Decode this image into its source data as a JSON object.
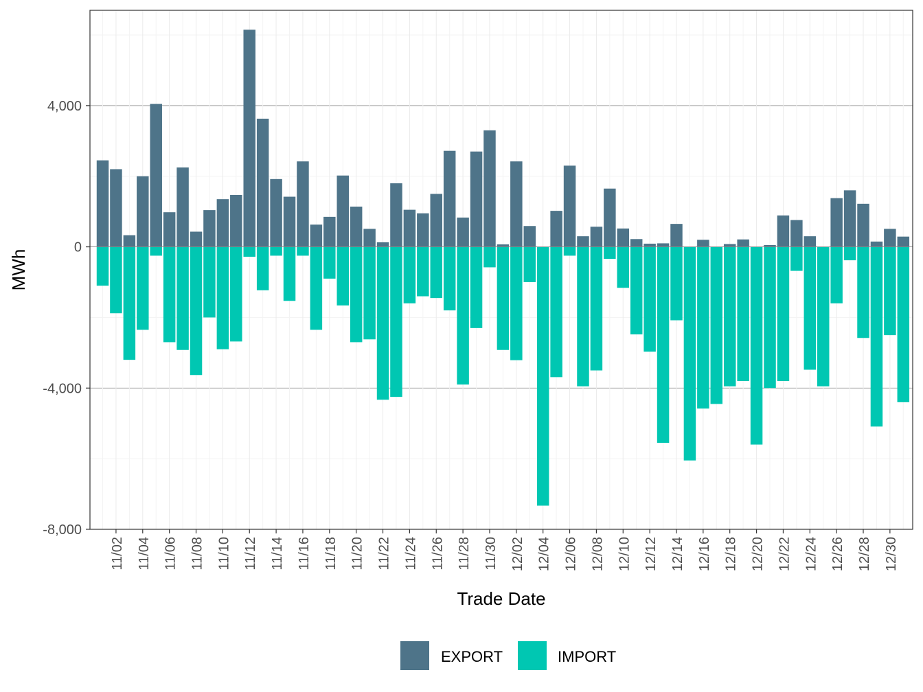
{
  "colors": {
    "export": "#4e7489",
    "import": "#00c7b2",
    "panel_border": "#333333",
    "grid_major": "#ebebeb",
    "grid_minor": "#f3f3f3",
    "zero_line": "#7a7a7a"
  },
  "chart_data": {
    "type": "bar",
    "stacked": true,
    "title": "",
    "xlabel": "Trade Date",
    "ylabel": "MWh",
    "ylim": [
      -8000,
      6700
    ],
    "yticks": [
      {
        "value": -8000,
        "label": "-8,000"
      },
      {
        "value": -4000,
        "label": "-4,000"
      },
      {
        "value": 0,
        "label": "0"
      },
      {
        "value": 4000,
        "label": "4,000"
      }
    ],
    "xticks": [
      "11/02",
      "11/04",
      "11/06",
      "11/08",
      "11/10",
      "11/12",
      "11/14",
      "11/16",
      "11/18",
      "11/20",
      "11/22",
      "11/24",
      "11/26",
      "11/28",
      "11/30",
      "12/02",
      "12/04",
      "12/06",
      "12/08",
      "12/10",
      "12/12",
      "12/14",
      "12/16",
      "12/18",
      "12/20",
      "12/22",
      "12/24",
      "12/26",
      "12/28",
      "12/30"
    ],
    "categories": [
      "11/01",
      "11/02",
      "11/03",
      "11/04",
      "11/05",
      "11/06",
      "11/07",
      "11/08",
      "11/09",
      "11/10",
      "11/11",
      "11/12",
      "11/13",
      "11/14",
      "11/15",
      "11/16",
      "11/17",
      "11/18",
      "11/19",
      "11/20",
      "11/21",
      "11/22",
      "11/23",
      "11/24",
      "11/25",
      "11/26",
      "11/27",
      "11/28",
      "11/29",
      "11/30",
      "12/01",
      "12/02",
      "12/03",
      "12/04",
      "12/05",
      "12/06",
      "12/07",
      "12/08",
      "12/09",
      "12/10",
      "12/11",
      "12/12",
      "12/13",
      "12/14",
      "12/15",
      "12/16",
      "12/17",
      "12/18",
      "12/19",
      "12/20",
      "12/21",
      "12/22",
      "12/23",
      "12/24",
      "12/25",
      "12/26",
      "12/27",
      "12/28",
      "12/29",
      "12/30",
      "12/31"
    ],
    "series": [
      {
        "name": "EXPORT",
        "values": [
          2450,
          2200,
          330,
          2000,
          4050,
          980,
          2250,
          430,
          1040,
          1350,
          1470,
          6150,
          3630,
          1920,
          1420,
          2420,
          630,
          850,
          2020,
          1140,
          510,
          130,
          1800,
          1050,
          950,
          1500,
          2720,
          830,
          2700,
          3300,
          70,
          2420,
          590,
          0,
          1020,
          2300,
          300,
          570,
          1650,
          520,
          220,
          90,
          100,
          650,
          0,
          200,
          0,
          80,
          210,
          0,
          50,
          890,
          760,
          300,
          0,
          1380,
          1600,
          1220,
          150,
          510,
          290
        ]
      },
      {
        "name": "IMPORT",
        "values": [
          -1100,
          -1880,
          -3200,
          -2350,
          -250,
          -2700,
          -2920,
          -3630,
          -2000,
          -2900,
          -2680,
          -280,
          -1230,
          -250,
          -1530,
          -250,
          -2350,
          -900,
          -1660,
          -2700,
          -2620,
          -4330,
          -4250,
          -1600,
          -1400,
          -1450,
          -1800,
          -3900,
          -2300,
          -580,
          -2920,
          -3210,
          -1000,
          -7330,
          -3690,
          -250,
          -3950,
          -3500,
          -340,
          -1160,
          -2480,
          -2970,
          -5550,
          -2080,
          -6050,
          -4580,
          -4450,
          -3950,
          -3800,
          -5600,
          -4000,
          -3800,
          -680,
          -3480,
          -3950,
          -1600,
          -380,
          -2580,
          -5090,
          -2500,
          -4400
        ]
      }
    ],
    "legend": {
      "position": "bottom",
      "entries": [
        "EXPORT",
        "IMPORT"
      ]
    }
  }
}
